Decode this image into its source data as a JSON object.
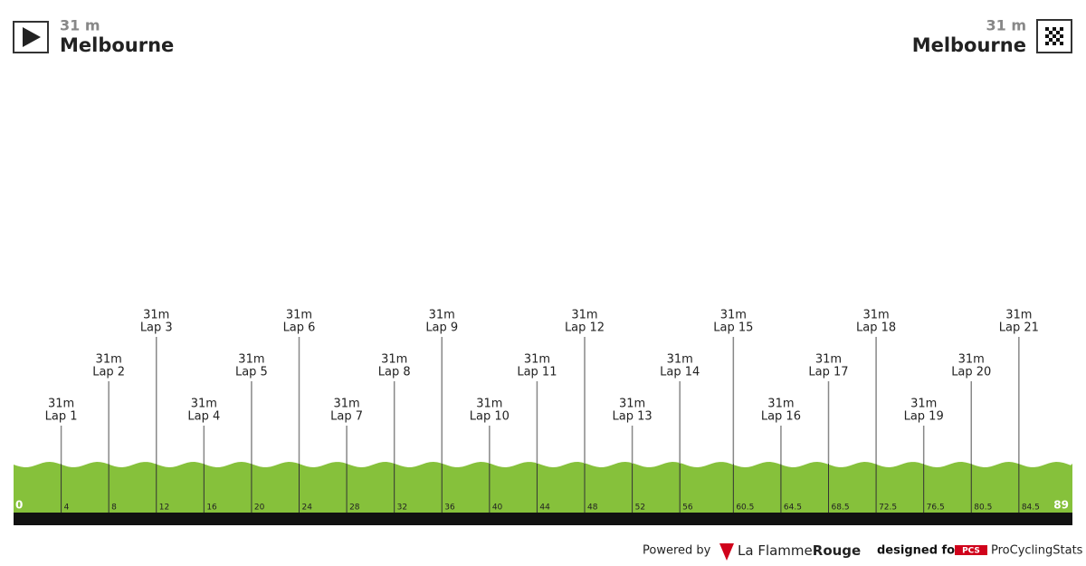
{
  "start": {
    "elevation": "31 m",
    "name": "Melbourne"
  },
  "finish": {
    "elevation": "31 m",
    "name": "Melbourne"
  },
  "chart_data": {
    "type": "profile",
    "xlim": [
      0,
      89
    ],
    "xticks": [
      0,
      4,
      8,
      12,
      16,
      20,
      24,
      28,
      32,
      36,
      40,
      44,
      48,
      52,
      56,
      60.5,
      64.5,
      68.5,
      72.5,
      76.5,
      80.5,
      84.5,
      89
    ],
    "markers": [
      {
        "elevation": "31m",
        "label": "Lap 1",
        "km": 4
      },
      {
        "elevation": "31m",
        "label": "Lap 2",
        "km": 8
      },
      {
        "elevation": "31m",
        "label": "Lap 3",
        "km": 12
      },
      {
        "elevation": "31m",
        "label": "Lap 4",
        "km": 16
      },
      {
        "elevation": "31m",
        "label": "Lap 5",
        "km": 20
      },
      {
        "elevation": "31m",
        "label": "Lap 6",
        "km": 24
      },
      {
        "elevation": "31m",
        "label": "Lap 7",
        "km": 28
      },
      {
        "elevation": "31m",
        "label": "Lap 8",
        "km": 32
      },
      {
        "elevation": "31m",
        "label": "Lap 9",
        "km": 36
      },
      {
        "elevation": "31m",
        "label": "Lap 10",
        "km": 40
      },
      {
        "elevation": "31m",
        "label": "Lap 11",
        "km": 44
      },
      {
        "elevation": "31m",
        "label": "Lap 12",
        "km": 48
      },
      {
        "elevation": "31m",
        "label": "Lap 13",
        "km": 52
      },
      {
        "elevation": "31m",
        "label": "Lap 14",
        "km": 56
      },
      {
        "elevation": "31m",
        "label": "Lap 15",
        "km": 60.5
      },
      {
        "elevation": "31m",
        "label": "Lap 16",
        "km": 64.5
      },
      {
        "elevation": "31m",
        "label": "Lap 17",
        "km": 68.5
      },
      {
        "elevation": "31m",
        "label": "Lap 18",
        "km": 72.5
      },
      {
        "elevation": "31m",
        "label": "Lap 19",
        "km": 76.5
      },
      {
        "elevation": "31m",
        "label": "Lap 20",
        "km": 80.5
      },
      {
        "elevation": "31m",
        "label": "Lap 21",
        "km": 84.5
      }
    ],
    "color": "#86c13b"
  },
  "footer": {
    "powered_by": "Powered by",
    "brand": "La Flamme",
    "brand_accent": "Rouge",
    "designed_for": "designed for",
    "pcs_badge": "PCS",
    "pcs_name": "ProCyclingStats"
  }
}
